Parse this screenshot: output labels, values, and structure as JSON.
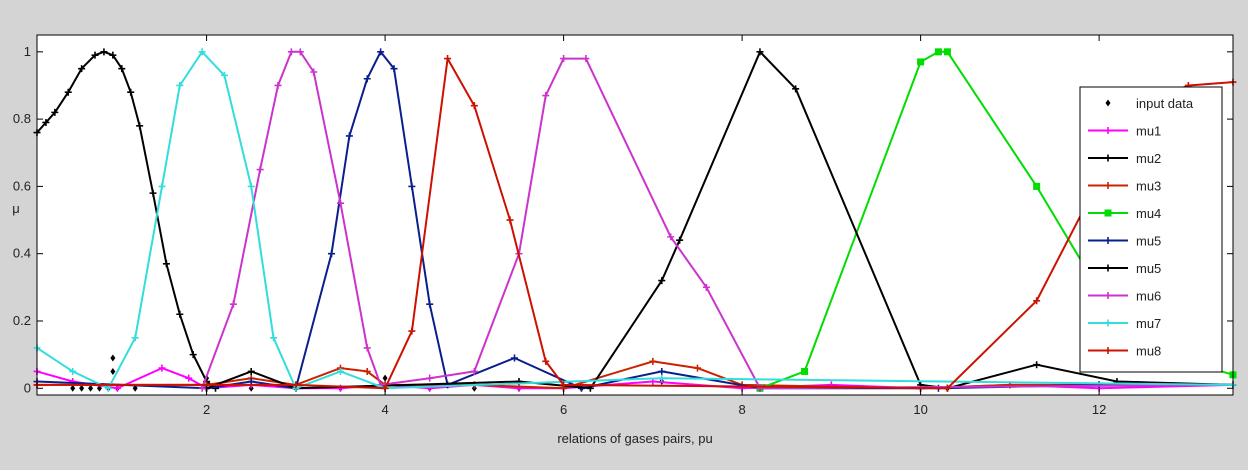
{
  "chart_data": {
    "type": "line",
    "title": "",
    "xlabel": "relations of gases pairs, pu",
    "ylabel": "μ",
    "xlim": [
      0.1,
      13.5
    ],
    "ylim": [
      -0.02,
      1.05
    ],
    "xticks": [
      2,
      4,
      6,
      8,
      10,
      12
    ],
    "yticks": [
      0,
      0.2,
      0.4,
      0.6,
      0.8,
      1
    ],
    "xtick_labels": [
      "2",
      "4",
      "6",
      "8",
      "10",
      "12"
    ],
    "ytick_labels": [
      "0",
      "0.2",
      "0.4",
      "0.6",
      "0.8",
      "1"
    ],
    "grid": false,
    "legend_position": "top-right",
    "series": [
      {
        "name": "input data",
        "color": "#000000",
        "marker": "diamond",
        "line": false,
        "points": [
          [
            0.5,
            0
          ],
          [
            0.6,
            0
          ],
          [
            0.7,
            0
          ],
          [
            0.8,
            0
          ],
          [
            0.9,
            0
          ],
          [
            0.95,
            0.05
          ],
          [
            0.95,
            0.09
          ],
          [
            1.0,
            0
          ],
          [
            1.2,
            0
          ],
          [
            2.0,
            0.03
          ],
          [
            2.5,
            0
          ],
          [
            3.0,
            0
          ],
          [
            3.5,
            0
          ],
          [
            4.0,
            0.03
          ],
          [
            4.5,
            0
          ],
          [
            5.0,
            0
          ],
          [
            5.5,
            0
          ],
          [
            6.2,
            0
          ],
          [
            7.1,
            0.02
          ],
          [
            8.2,
            0
          ],
          [
            10.3,
            0
          ]
        ]
      },
      {
        "name": "mu1",
        "color": "#ff00ff",
        "marker": "plus",
        "line": true,
        "points": [
          [
            0.1,
            0.05
          ],
          [
            0.5,
            0.02
          ],
          [
            1.0,
            0
          ],
          [
            1.5,
            0.06
          ],
          [
            1.8,
            0.03
          ],
          [
            2.0,
            0
          ],
          [
            2.5,
            0.01
          ],
          [
            3.0,
            0
          ],
          [
            3.5,
            0
          ],
          [
            4.0,
            0.01
          ],
          [
            4.5,
            0
          ],
          [
            5.0,
            0.01
          ],
          [
            5.5,
            0
          ],
          [
            6.0,
            0
          ],
          [
            7.0,
            0.02
          ],
          [
            8.0,
            0
          ],
          [
            9.0,
            0.01
          ],
          [
            10.0,
            0
          ],
          [
            11.0,
            0.01
          ],
          [
            12.0,
            0
          ],
          [
            13.5,
            0.01
          ]
        ]
      },
      {
        "name": "mu2",
        "color": "#000000",
        "marker": "plus",
        "line": true,
        "points": [
          [
            0.1,
            0.76
          ],
          [
            0.2,
            0.79
          ],
          [
            0.3,
            0.82
          ],
          [
            0.45,
            0.88
          ],
          [
            0.6,
            0.95
          ],
          [
            0.75,
            0.99
          ],
          [
            0.85,
            1.0
          ],
          [
            0.95,
            0.99
          ],
          [
            1.05,
            0.95
          ],
          [
            1.15,
            0.88
          ],
          [
            1.25,
            0.78
          ],
          [
            1.4,
            0.58
          ],
          [
            1.55,
            0.37
          ],
          [
            1.7,
            0.22
          ],
          [
            1.85,
            0.1
          ],
          [
            2.0,
            0.02
          ],
          [
            2.1,
            0
          ]
        ]
      },
      {
        "name": "mu3",
        "color": "#cc2200",
        "marker": "plus",
        "line": true,
        "points": [
          [
            0.1,
            0.01
          ],
          [
            2.0,
            0.01
          ],
          [
            2.5,
            0.03
          ],
          [
            3.0,
            0.01
          ],
          [
            3.5,
            0.06
          ],
          [
            3.8,
            0.05
          ],
          [
            4.0,
            0.01
          ],
          [
            5.0,
            0.01
          ],
          [
            6.0,
            0
          ],
          [
            7.0,
            0.08
          ],
          [
            7.5,
            0.06
          ],
          [
            8.0,
            0.01
          ],
          [
            10.0,
            0
          ],
          [
            11.0,
            0.01
          ],
          [
            12.0,
            0.01
          ],
          [
            13.5,
            0.01
          ]
        ]
      },
      {
        "name": "mu4",
        "color": "#00dd00",
        "marker": "square",
        "line": true,
        "points": [
          [
            8.2,
            0
          ],
          [
            8.7,
            0.05
          ],
          [
            10.0,
            0.97
          ],
          [
            10.2,
            1.0
          ],
          [
            10.3,
            1.0
          ],
          [
            11.3,
            0.6
          ],
          [
            12.0,
            0.29
          ],
          [
            12.2,
            0.2
          ],
          [
            13.0,
            0.08
          ],
          [
            13.5,
            0.04
          ]
        ]
      },
      {
        "name": "mu5",
        "color": "#0a1e8c",
        "marker": "plus",
        "line": true,
        "points": [
          [
            0.1,
            0.02
          ],
          [
            2.0,
            0
          ],
          [
            2.5,
            0.02
          ],
          [
            3.0,
            0
          ],
          [
            3.4,
            0.4
          ],
          [
            3.6,
            0.75
          ],
          [
            3.8,
            0.92
          ],
          [
            3.95,
            1.0
          ],
          [
            4.1,
            0.95
          ],
          [
            4.3,
            0.6
          ],
          [
            4.5,
            0.25
          ],
          [
            4.7,
            0.01
          ],
          [
            5.45,
            0.09
          ],
          [
            6.2,
            0
          ],
          [
            7.1,
            0.05
          ],
          [
            8.2,
            0
          ],
          [
            10.2,
            0
          ],
          [
            12.0,
            0.01
          ],
          [
            13.5,
            0.01
          ]
        ]
      },
      {
        "name": "mu5",
        "color": "#000000",
        "marker": "plus",
        "line": true,
        "points": [
          [
            2.0,
            0
          ],
          [
            2.5,
            0.05
          ],
          [
            3.0,
            0
          ],
          [
            5.5,
            0.02
          ],
          [
            6.3,
            0
          ],
          [
            7.1,
            0.32
          ],
          [
            7.3,
            0.44
          ],
          [
            8.2,
            1.0
          ],
          [
            8.6,
            0.89
          ],
          [
            10.0,
            0.01
          ],
          [
            10.3,
            0
          ],
          [
            11.3,
            0.07
          ],
          [
            12.2,
            0.02
          ],
          [
            13.5,
            0.01
          ]
        ]
      },
      {
        "name": "mu6",
        "color": "#cc33cc",
        "marker": "plus",
        "line": true,
        "points": [
          [
            1.95,
            0
          ],
          [
            2.3,
            0.25
          ],
          [
            2.6,
            0.65
          ],
          [
            2.8,
            0.9
          ],
          [
            2.95,
            1.0
          ],
          [
            3.05,
            1.0
          ],
          [
            3.2,
            0.94
          ],
          [
            3.5,
            0.55
          ],
          [
            3.8,
            0.12
          ],
          [
            3.95,
            0.01
          ],
          [
            4.5,
            0.03
          ],
          [
            5.0,
            0.05
          ],
          [
            5.5,
            0.4
          ],
          [
            5.8,
            0.87
          ],
          [
            6.0,
            0.98
          ],
          [
            6.25,
            0.98
          ],
          [
            7.2,
            0.45
          ],
          [
            7.6,
            0.3
          ],
          [
            8.2,
            0
          ],
          [
            13.5,
            0.01
          ]
        ]
      },
      {
        "name": "mu7",
        "color": "#33dddd",
        "marker": "plus",
        "line": true,
        "points": [
          [
            0.1,
            0.12
          ],
          [
            0.5,
            0.05
          ],
          [
            0.9,
            0
          ],
          [
            1.2,
            0.15
          ],
          [
            1.5,
            0.6
          ],
          [
            1.7,
            0.9
          ],
          [
            1.95,
            1.0
          ],
          [
            2.2,
            0.93
          ],
          [
            2.5,
            0.6
          ],
          [
            2.75,
            0.15
          ],
          [
            3.0,
            0
          ],
          [
            3.5,
            0.05
          ],
          [
            4.0,
            0
          ],
          [
            7.1,
            0.03
          ],
          [
            13.5,
            0.01
          ]
        ]
      },
      {
        "name": "mu8",
        "color": "#cc1100",
        "marker": "plus",
        "line": true,
        "points": [
          [
            0.1,
            0.01
          ],
          [
            3.0,
            0.01
          ],
          [
            4.0,
            0
          ],
          [
            4.3,
            0.17
          ],
          [
            4.7,
            0.98
          ],
          [
            5.0,
            0.84
          ],
          [
            5.4,
            0.5
          ],
          [
            5.8,
            0.08
          ],
          [
            6.0,
            0.01
          ],
          [
            10.3,
            0
          ],
          [
            11.3,
            0.26
          ],
          [
            12.0,
            0.62
          ],
          [
            12.5,
            0.85
          ],
          [
            13.0,
            0.9
          ],
          [
            13.5,
            0.91
          ]
        ]
      }
    ]
  }
}
